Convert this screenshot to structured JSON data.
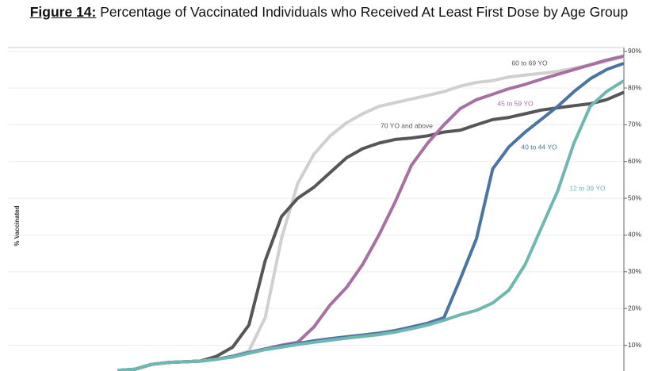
{
  "chart_data": {
    "type": "line",
    "title_prefix": "Figure 14:",
    "title": "Percentage of Vaccinated Individuals who Received At Least First Dose by Age Group",
    "y_axis_label": "% Vaccinated",
    "categories": [
      null,
      null,
      null,
      null,
      null,
      null,
      null,
      null,
      null,
      null,
      null,
      null,
      null,
      null,
      null,
      null,
      null,
      null,
      null,
      null,
      null,
      null,
      null,
      null,
      null,
      null,
      null,
      null,
      null,
      null,
      null,
      null
    ],
    "series": [
      {
        "name": "60 to 69 YO",
        "color": "#d0d0d0",
        "values": [
          3.2,
          3.5,
          4.8,
          5.3,
          5.5,
          5.7,
          6.2,
          7,
          8.5,
          17.5,
          39,
          54,
          62,
          67,
          70.5,
          73,
          75,
          76,
          77,
          78,
          79,
          80.5,
          81.5,
          82,
          83,
          83.5,
          84,
          84.5,
          85.4,
          86.3,
          87.3,
          88.4
        ]
      },
      {
        "name": "70 YO and above",
        "color": "#55565a",
        "values": [
          3.2,
          3.5,
          4.8,
          5.3,
          5.5,
          5.7,
          7,
          9.5,
          15.5,
          33,
          45,
          50,
          53,
          57,
          61,
          63.5,
          65,
          66,
          66.4,
          67,
          68,
          68.5,
          70,
          71.4,
          72,
          73,
          74,
          74.6,
          75.2,
          75.7,
          76.8,
          78.7
        ]
      },
      {
        "name": "45 to 59 YO",
        "color": "#a86fa3",
        "values": [
          3.2,
          3.5,
          4.8,
          5.3,
          5.5,
          5.7,
          6.2,
          7,
          8,
          9,
          10,
          10.8,
          15,
          21,
          25.7,
          32,
          40,
          49,
          59,
          65,
          70,
          74.4,
          76.8,
          78.3,
          79.8,
          81,
          82.4,
          83.7,
          85,
          86.3,
          87.6,
          88.6
        ]
      },
      {
        "name": "40 to 44 YO",
        "color": "#4a74a3",
        "values": [
          3.2,
          3.5,
          4.8,
          5.3,
          5.5,
          5.7,
          6.2,
          7,
          8,
          9,
          9.8,
          10.5,
          11.2,
          11.8,
          12.3,
          12.8,
          13.3,
          14,
          15,
          16,
          17.5,
          28,
          39,
          58,
          64,
          68,
          71.5,
          75,
          79,
          82.5,
          85,
          86.6
        ]
      },
      {
        "name": "12 to 39 YO",
        "color": "#6fb7b0",
        "values": [
          3.2,
          3.5,
          4.8,
          5.3,
          5.5,
          5.7,
          6.2,
          6.8,
          7.8,
          8.8,
          9.5,
          10.2,
          10.8,
          11.4,
          11.9,
          12.4,
          12.9,
          13.6,
          14.5,
          15.5,
          16.8,
          18.3,
          19.5,
          21.5,
          25,
          32,
          42,
          52,
          65,
          75,
          79,
          81.8
        ]
      }
    ],
    "ylim": [
      3,
      91
    ],
    "yticks": [
      {
        "value": 10,
        "label": "10%"
      },
      {
        "value": 20,
        "label": "20%"
      },
      {
        "value": 30,
        "label": "30%"
      },
      {
        "value": 40,
        "label": "40%"
      },
      {
        "value": 50,
        "label": "50%"
      },
      {
        "value": 60,
        "label": "60%"
      },
      {
        "value": 70,
        "label": "70%"
      },
      {
        "value": 80,
        "label": "80%"
      },
      {
        "value": 90,
        "label": "90%"
      }
    ],
    "grid": true
  }
}
